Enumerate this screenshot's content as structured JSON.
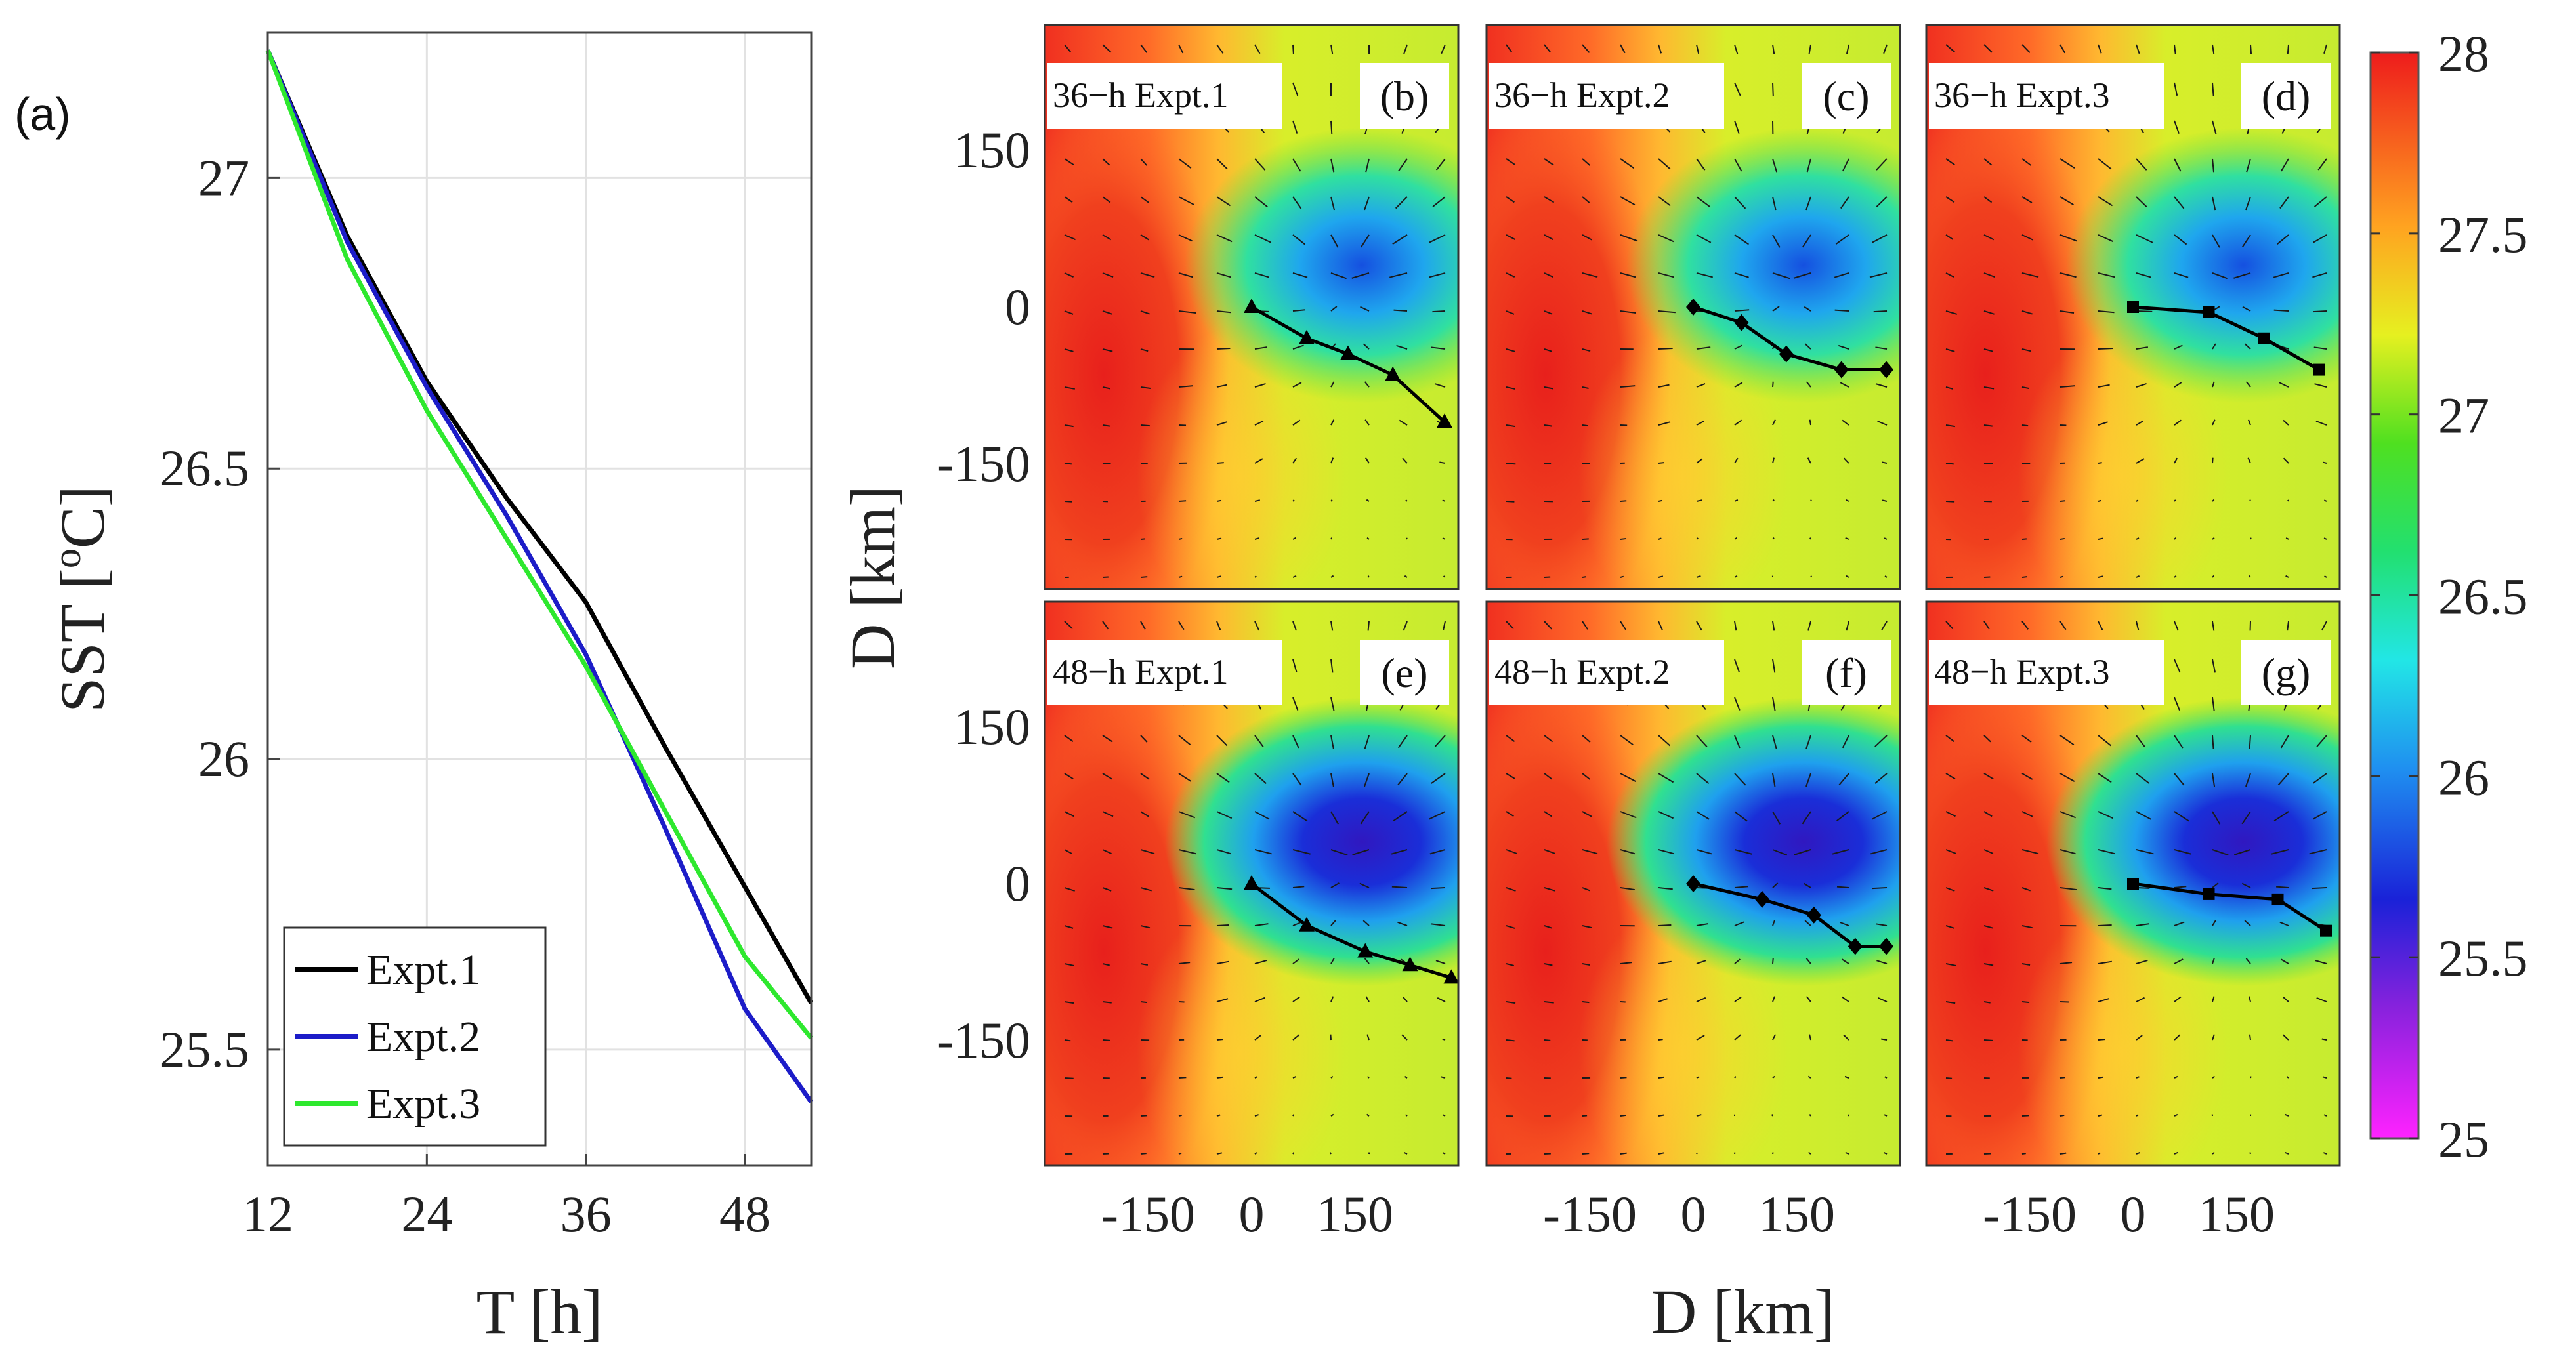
{
  "figure_label": "(a)",
  "colors": {
    "expt1": "#000000",
    "expt2": "#1c1cc8",
    "expt3": "#2ee82e",
    "track": "#000000"
  },
  "chart_data": [
    {
      "type": "line",
      "id": "a",
      "title": "",
      "xlabel": "T [h]",
      "ylabel": "SST [°C]",
      "ylabel_main": "SST [",
      "ylabel_sup": "o",
      "ylabel_end": "C]",
      "xlim": [
        12,
        53
      ],
      "ylim": [
        25.3,
        27.25
      ],
      "xticks": [
        12,
        24,
        36,
        48
      ],
      "yticks": [
        25.5,
        26,
        26.5,
        27
      ],
      "grid": true,
      "legend_position": "bottom-left",
      "series": [
        {
          "name": "Expt.1",
          "color_key": "expt1",
          "x": [
            12,
            18,
            24,
            30,
            36,
            42,
            48,
            53
          ],
          "y": [
            27.22,
            26.9,
            26.65,
            26.45,
            26.27,
            26.02,
            25.78,
            25.58
          ]
        },
        {
          "name": "Expt.2",
          "color_key": "expt2",
          "x": [
            12,
            18,
            24,
            30,
            36,
            42,
            48,
            53
          ],
          "y": [
            27.22,
            26.89,
            26.64,
            26.42,
            26.18,
            25.88,
            25.57,
            25.41
          ]
        },
        {
          "name": "Expt.3",
          "color_key": "expt3",
          "x": [
            12,
            18,
            24,
            30,
            36,
            42,
            48,
            53
          ],
          "y": [
            27.22,
            26.86,
            26.6,
            26.38,
            26.16,
            25.91,
            25.66,
            25.52
          ]
        }
      ]
    },
    {
      "type": "heatmap",
      "id": "maps",
      "xlabel": "D [km]",
      "ylabel": "D [km]",
      "xlim": [
        -300,
        300
      ],
      "ylim": [
        -270,
        270
      ],
      "xticks": [
        -150,
        0,
        150
      ],
      "yticks": [
        -150,
        0,
        150
      ],
      "colorbar": {
        "min": 25,
        "max": 28,
        "ticks": [
          25,
          25.5,
          26,
          26.5,
          27,
          27.5,
          28
        ]
      },
      "panels": [
        {
          "label": "(b)",
          "title": "36−h Expt.1",
          "marker": "triangle",
          "track_x": [
            0,
            80,
            140,
            205,
            280
          ],
          "track_y": [
            0,
            -30,
            -45,
            -65,
            -110
          ]
        },
        {
          "label": "(c)",
          "title": "36−h Expt.2",
          "marker": "diamond",
          "track_x": [
            0,
            70,
            135,
            215,
            280
          ],
          "track_y": [
            0,
            -15,
            -45,
            -60,
            -60
          ]
        },
        {
          "label": "(d)",
          "title": "36−h Expt.3",
          "marker": "square",
          "track_x": [
            0,
            110,
            190,
            270
          ],
          "track_y": [
            0,
            -5,
            -30,
            -60
          ]
        },
        {
          "label": "(e)",
          "title": "48−h Expt.1",
          "marker": "triangle",
          "track_x": [
            0,
            80,
            165,
            230,
            290
          ],
          "track_y": [
            0,
            -40,
            -65,
            -78,
            -90
          ]
        },
        {
          "label": "(f)",
          "title": "48−h Expt.2",
          "marker": "diamond",
          "track_x": [
            0,
            100,
            175,
            235,
            280
          ],
          "track_y": [
            0,
            -15,
            -30,
            -60,
            -60
          ]
        },
        {
          "label": "(g)",
          "title": "48−h Expt.3",
          "marker": "square",
          "track_x": [
            0,
            110,
            210,
            280
          ],
          "track_y": [
            0,
            -10,
            -15,
            -45
          ]
        }
      ]
    }
  ]
}
